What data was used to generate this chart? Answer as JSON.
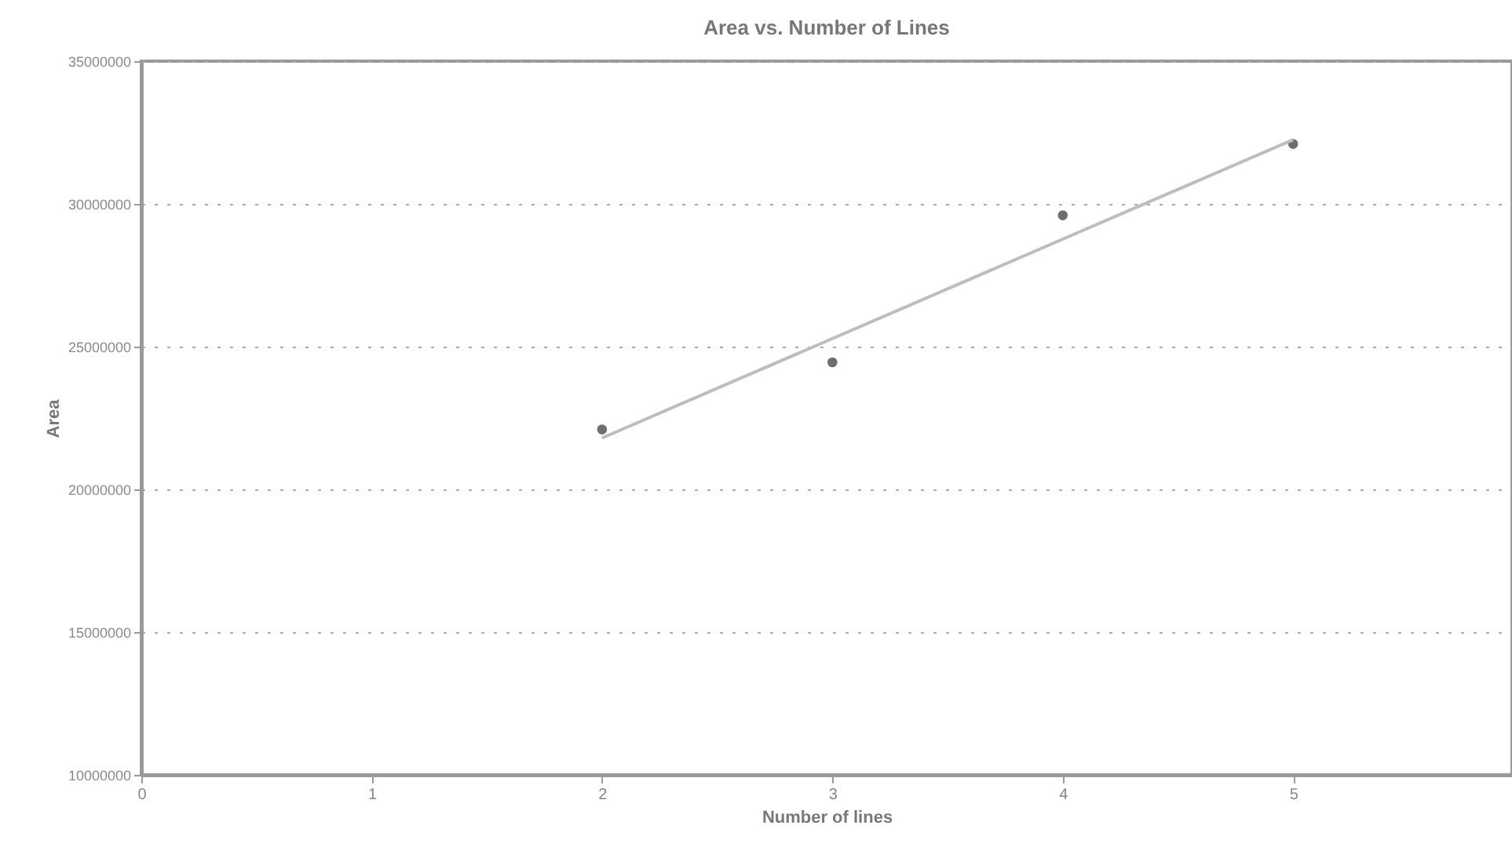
{
  "chart_data": {
    "type": "scatter",
    "title": "Area vs. Number of Lines",
    "xlabel": "Number of lines",
    "ylabel": "Area",
    "xlim": [
      0,
      5.95
    ],
    "xticks": [
      0,
      1,
      2,
      3,
      4,
      5
    ],
    "ylim": [
      10000000,
      35000000
    ],
    "yticks": [
      10000000,
      15000000,
      20000000,
      25000000,
      30000000,
      35000000
    ],
    "grid": "y",
    "series": [
      {
        "marker": "circle",
        "color": "#6e6e6e",
        "x": [
          2,
          3,
          4,
          5
        ],
        "values": [
          22100000,
          24450000,
          29600000,
          32100000
        ]
      },
      {
        "type": "line",
        "color": "#bdbdbd",
        "x": [
          2,
          5
        ],
        "values": [
          21800000,
          32250000
        ]
      }
    ]
  }
}
